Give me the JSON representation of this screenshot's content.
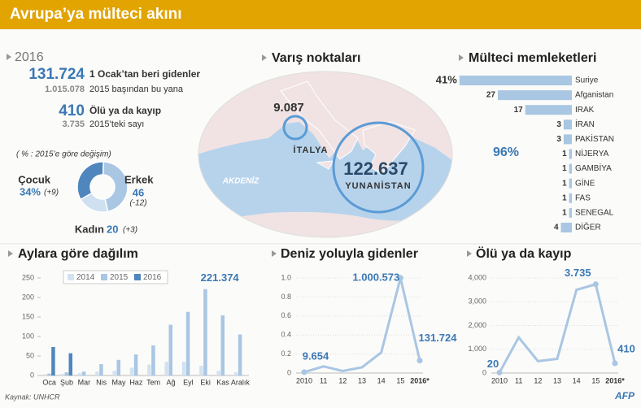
{
  "header": {
    "title": "Avrupa’ya mülteci akını"
  },
  "stats": {
    "year": "2016",
    "rows": [
      {
        "value": "131.724",
        "label": "1 Ocak’tan beri gidenler"
      },
      {
        "value": "1.015.078",
        "label": "2015 başından bu yana"
      },
      {
        "value": "410",
        "label": "Ölü ya da kayıp"
      },
      {
        "value": "3.735",
        "label": "2015’teki sayı"
      }
    ]
  },
  "map": {
    "title": "Varış noktaları",
    "sea": "AKDENİZ",
    "points": [
      {
        "label": "İTALYA",
        "value": "9.087"
      },
      {
        "label": "YUNANİSTAN",
        "value": "122.637"
      }
    ]
  },
  "chart_data": [
    {
      "type": "pie",
      "subtitle": "( % : 2015’e göre değişim)",
      "categories": [
        "Çocuk",
        "Erkek",
        "Kadın"
      ],
      "values": [
        34,
        46,
        20
      ],
      "value_labels": [
        "34%",
        "46",
        "20"
      ],
      "change_labels": [
        "(+9)",
        "(-12)",
        "(+3)"
      ],
      "colors": [
        "#4f86bd",
        "#a9c6e3",
        "#cfe0f0"
      ]
    },
    {
      "type": "hbar",
      "title": "Mülteci memleketleri",
      "categories": [
        "Suriye",
        "Afganistan",
        "IRAK",
        "İRAN",
        "PAKİSTAN",
        "NİJERYA",
        "GAMBİYA",
        "GİNE",
        "FAS",
        "SENEGAL",
        "DİĞER"
      ],
      "values": [
        41,
        27,
        17,
        3,
        3,
        1,
        1,
        1,
        1,
        1,
        4
      ],
      "value_labels": [
        "41%",
        null,
        null,
        null,
        null,
        null,
        null,
        null,
        null,
        null,
        null
      ],
      "annotation": "96%",
      "color": "#a9c6e3"
    },
    {
      "type": "grouped_bar",
      "title": "Aylara göre dağılım",
      "categories": [
        "Oca",
        "Şub",
        "Mar",
        "Nis",
        "May",
        "Haz",
        "Tem",
        "Ağ",
        "Eyl",
        "Eki",
        "Kas",
        "Aralık"
      ],
      "series": [
        {
          "name": "2014",
          "color": "#d3e2f0",
          "values": [
            3,
            4,
            6,
            10,
            12,
            20,
            28,
            35,
            35,
            25,
            12,
            8
          ]
        },
        {
          "name": "2015",
          "color": "#a9c6e3",
          "values": [
            5,
            8,
            10,
            29,
            40,
            54,
            77,
            130,
            163,
            221.374,
            154,
            105
          ],
          "value_labels": [
            null,
            null,
            null,
            null,
            null,
            null,
            null,
            null,
            null,
            "221.374",
            null,
            null
          ]
        },
        {
          "name": "2016",
          "color": "#4f86bd",
          "values": [
            73,
            57,
            null,
            null,
            null,
            null,
            null,
            null,
            null,
            null,
            null,
            null
          ]
        }
      ],
      "ylim": [
        0,
        250
      ],
      "yticks": [
        0,
        50,
        100,
        150,
        200,
        250
      ]
    },
    {
      "type": "line",
      "title": "Deniz yoluyla gidenler",
      "categories": [
        "2010",
        "11",
        "12",
        "13",
        "14",
        "15",
        "2016*"
      ],
      "series": [
        {
          "color": "#a9c6e3",
          "values": [
            0.009654,
            0.07,
            0.022,
            0.06,
            0.216,
            1.000573,
            0.131724
          ],
          "value_labels": [
            "9.654",
            null,
            null,
            null,
            null,
            "1.000.573",
            "131.724"
          ]
        }
      ],
      "ylim": [
        0,
        1
      ],
      "yticks": [
        0,
        0.2,
        0.4,
        0.6,
        0.8,
        {
          "value": 1,
          "label": "1.0"
        }
      ]
    },
    {
      "type": "line",
      "title": "Ölü ya da kayıp",
      "categories": [
        "2010",
        "11",
        "12",
        "13",
        "14",
        "15",
        "2016*"
      ],
      "series": [
        {
          "color": "#a9c6e3",
          "values": [
            20,
            1500,
            500,
            600,
            3500,
            3735,
            410
          ],
          "value_labels": [
            "20",
            null,
            null,
            null,
            null,
            "3.735",
            "410"
          ]
        }
      ],
      "ylim": [
        0,
        4000
      ],
      "yticks": [
        0,
        {
          "value": 1000,
          "label": "1,000"
        },
        {
          "value": 2000,
          "label": "2,000"
        },
        {
          "value": 3000,
          "label": "3,000"
        },
        {
          "value": 4000,
          "label": "4,000"
        }
      ]
    }
  ],
  "footer": {
    "source": "Kaynak: UNHCR",
    "logo": "AFP"
  }
}
